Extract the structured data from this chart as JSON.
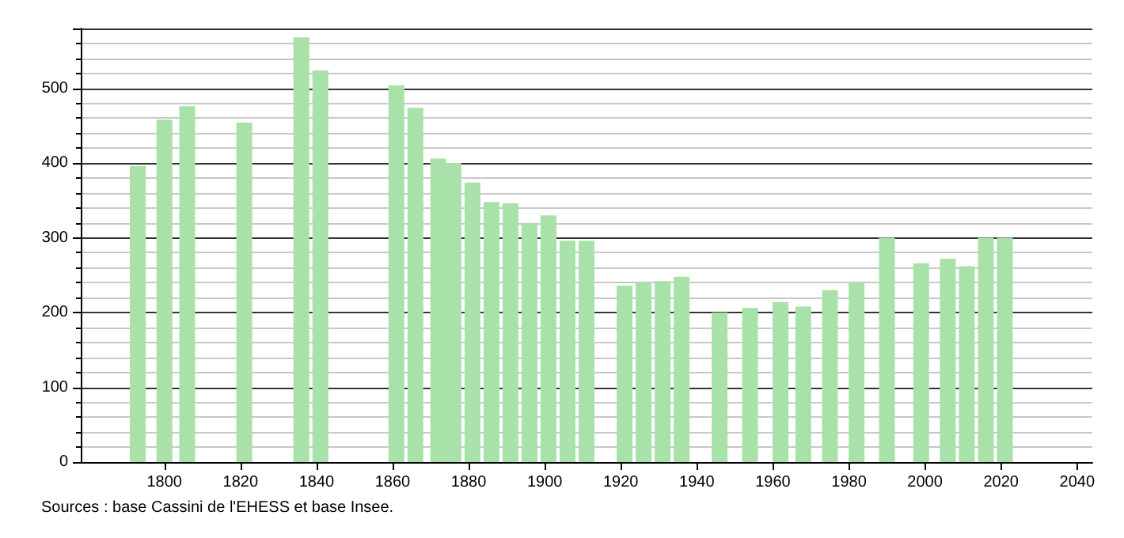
{
  "chart_data": {
    "type": "bar",
    "x": [
      1793,
      1800,
      1806,
      1821,
      1836,
      1841,
      1861,
      1866,
      1872,
      1876,
      1881,
      1886,
      1891,
      1896,
      1901,
      1906,
      1911,
      1921,
      1926,
      1931,
      1936,
      1946,
      1954,
      1962,
      1968,
      1975,
      1982,
      1990,
      1999,
      2006,
      2011,
      2016,
      2021
    ],
    "values": [
      396,
      458,
      476,
      454,
      568,
      524,
      504,
      474,
      406,
      400,
      374,
      348,
      346,
      320,
      330,
      296,
      296,
      236,
      240,
      242,
      248,
      200,
      206,
      214,
      208,
      230,
      240,
      300,
      266,
      272,
      262,
      300,
      300
    ],
    "color": "#a8e2a8",
    "xlim": [
      1778,
      2044
    ],
    "xticks": [
      1800,
      1820,
      1840,
      1860,
      1880,
      1900,
      1920,
      1940,
      1960,
      1980,
      2000,
      2020,
      2040
    ],
    "ylim": [
      0,
      580
    ],
    "yticks": [
      0,
      100,
      200,
      300,
      400,
      500
    ],
    "grid": "y",
    "annotations": [
      "Sources : base Cassini de l'EHESS et base Insee."
    ]
  }
}
